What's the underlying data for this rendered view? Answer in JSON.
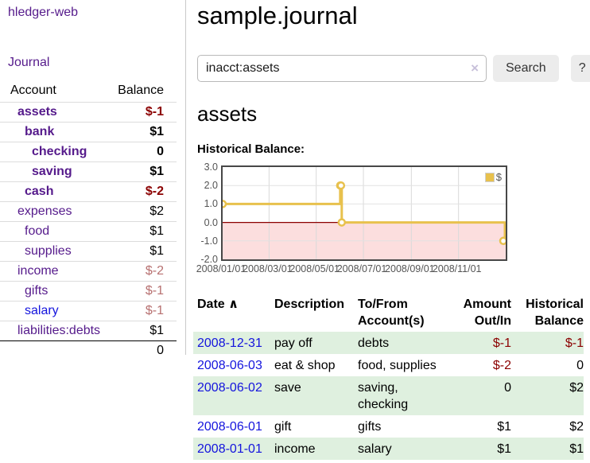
{
  "colors": {
    "link_purple": "#551a8b",
    "link_blue": "#1414dd",
    "negative": "#8b0000",
    "negative_dim": "#b77070",
    "muted_tick": "#545454",
    "row_shade_green": "#dff0df",
    "button_bg": "#ececec",
    "chart_line_gold": "#e8c14d",
    "chart_negative_fill": "#fcdede",
    "chart_zero_line": "#8b0000"
  },
  "sidebar": {
    "app_title": "hledger-web",
    "journal_link": "Journal",
    "table": {
      "account_header": "Account",
      "balance_header": "Balance",
      "total": "0",
      "accounts": [
        {
          "name": "assets",
          "depth": 0,
          "bold": true,
          "balance": "$-1",
          "balance_color": "#8b0000"
        },
        {
          "name": "bank",
          "depth": 1,
          "bold": true,
          "balance": "$1"
        },
        {
          "name": "checking",
          "depth": 2,
          "bold": true,
          "balance": "0"
        },
        {
          "name": "saving",
          "depth": 2,
          "bold": true,
          "balance": "$1"
        },
        {
          "name": "cash",
          "depth": 1,
          "bold": true,
          "balance": "$-2",
          "balance_color": "#8b0000"
        },
        {
          "name": "expenses",
          "depth": 0,
          "bold": false,
          "balance": "$2"
        },
        {
          "name": "food",
          "depth": 1,
          "bold": false,
          "balance": "$1"
        },
        {
          "name": "supplies",
          "depth": 1,
          "bold": false,
          "balance": "$1"
        },
        {
          "name": "income",
          "depth": 0,
          "bold": false,
          "balance": "$-2",
          "balance_color": "#b77070"
        },
        {
          "name": "gifts",
          "depth": 1,
          "bold": false,
          "balance": "$-1",
          "balance_color": "#b77070"
        },
        {
          "name": "salary",
          "depth": 1,
          "bold": false,
          "balance": "$-1",
          "balance_color": "#b77070",
          "name_color": "#1414dd"
        },
        {
          "name": "liabilities:debts",
          "depth": 0,
          "bold": false,
          "balance": "$1"
        }
      ]
    }
  },
  "main": {
    "title": "sample.journal",
    "search": {
      "value": "inacct:assets",
      "search_button": "Search",
      "help_button": "?"
    },
    "account_heading": "assets",
    "chart_label": "Historical Balance:"
  },
  "icons": {
    "clear_search": "×",
    "sort_ascending": "∧"
  },
  "chart_data": {
    "type": "line",
    "title": "Historical Balance:",
    "step": true,
    "legend": {
      "label": "$",
      "position": "top-right",
      "swatch_color": "#e8c14d"
    },
    "ylim": [
      -2,
      3
    ],
    "yticks": [
      3.0,
      2.0,
      1.0,
      0.0,
      -1.0,
      -2.0
    ],
    "x_range_days": [
      0,
      366
    ],
    "xtick_days": [
      0,
      60,
      121,
      182,
      244,
      305
    ],
    "xtick_labels": [
      "2008/01/01",
      "2008/03/01",
      "2008/05/01",
      "2008/07/01",
      "2008/09/01",
      "2008/11/01"
    ],
    "grid": true,
    "negative_region_fill": "#fcdede",
    "zero_line_color": "#8b0000",
    "series": [
      {
        "name": "$",
        "color": "#e8c14d",
        "points": [
          {
            "date": "2008-01-01",
            "day": 0,
            "value": 1
          },
          {
            "date": "2008-06-01",
            "day": 152,
            "value": 2
          },
          {
            "date": "2008-06-02",
            "day": 153,
            "value": 2
          },
          {
            "date": "2008-06-03",
            "day": 154,
            "value": 0
          },
          {
            "date": "2008-12-31",
            "day": 365,
            "value": -1
          }
        ]
      }
    ]
  },
  "register": {
    "columns": [
      "Date",
      "Description",
      "To/From Account(s)",
      "Amount Out/In",
      "Historical Balance"
    ],
    "rows": [
      {
        "date": "2008-12-31",
        "description": "pay off",
        "accounts": "debts",
        "amount": "$-1",
        "amount_color": "#8b0000",
        "balance": "$-1",
        "balance_color": "#8b0000"
      },
      {
        "date": "2008-06-03",
        "description": "eat & shop",
        "accounts": "food, supplies",
        "amount": "$-2",
        "amount_color": "#8b0000",
        "balance": "0"
      },
      {
        "date": "2008-06-02",
        "description": "save",
        "accounts": "saving, checking",
        "amount": "0",
        "balance": "$2"
      },
      {
        "date": "2008-06-01",
        "description": "gift",
        "accounts": "gifts",
        "amount": "$1",
        "balance": "$2"
      },
      {
        "date": "2008-01-01",
        "description": "income",
        "accounts": "salary",
        "amount": "$1",
        "balance": "$1"
      }
    ]
  }
}
